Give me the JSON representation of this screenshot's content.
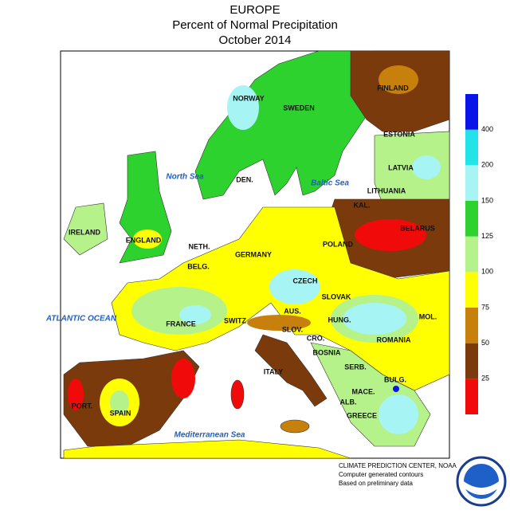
{
  "header": {
    "title_lines": [
      "EUROPE",
      "Percent of Normal Precipitation",
      "October 2014"
    ]
  },
  "map": {
    "countries": [
      "NORWAY",
      "SWEDEN",
      "FINLAND",
      "ESTONIA",
      "LATVIA",
      "LITHUANIA",
      "KAL.",
      "BELARUS",
      "DEN.",
      "IRELAND",
      "ENGLAND",
      "NETH.",
      "BELG.",
      "GERMANY",
      "POLAND",
      "CZECH",
      "SLOVAK",
      "AUS.",
      "HUNG.",
      "SWITZ",
      "FRANCE",
      "SLOV.",
      "CRO.",
      "ROMANIA",
      "MOL.",
      "BOSNIA",
      "SERB.",
      "BULG.",
      "ITALY",
      "MACE.",
      "ALB.",
      "GREECE",
      "PORT.",
      "SPAIN"
    ],
    "seas": [
      "North Sea",
      "Baltic Sea",
      "ATLANTIC OCEAN",
      "Mediterranean Sea"
    ]
  },
  "legend": {
    "ticks": [
      25,
      50,
      75,
      100,
      125,
      150,
      200,
      400
    ],
    "colors": [
      "#f00a0a",
      "#7a3a0c",
      "#c8800c",
      "#ffff00",
      "#b6f28a",
      "#2ed22e",
      "#a6f4f4",
      "#22e4e8",
      "#0a14e6"
    ]
  },
  "footer": {
    "lines": [
      "CLIMATE PREDICTION CENTER, NOAA",
      "Computer generated contours",
      "Based on preliminary data"
    ]
  }
}
